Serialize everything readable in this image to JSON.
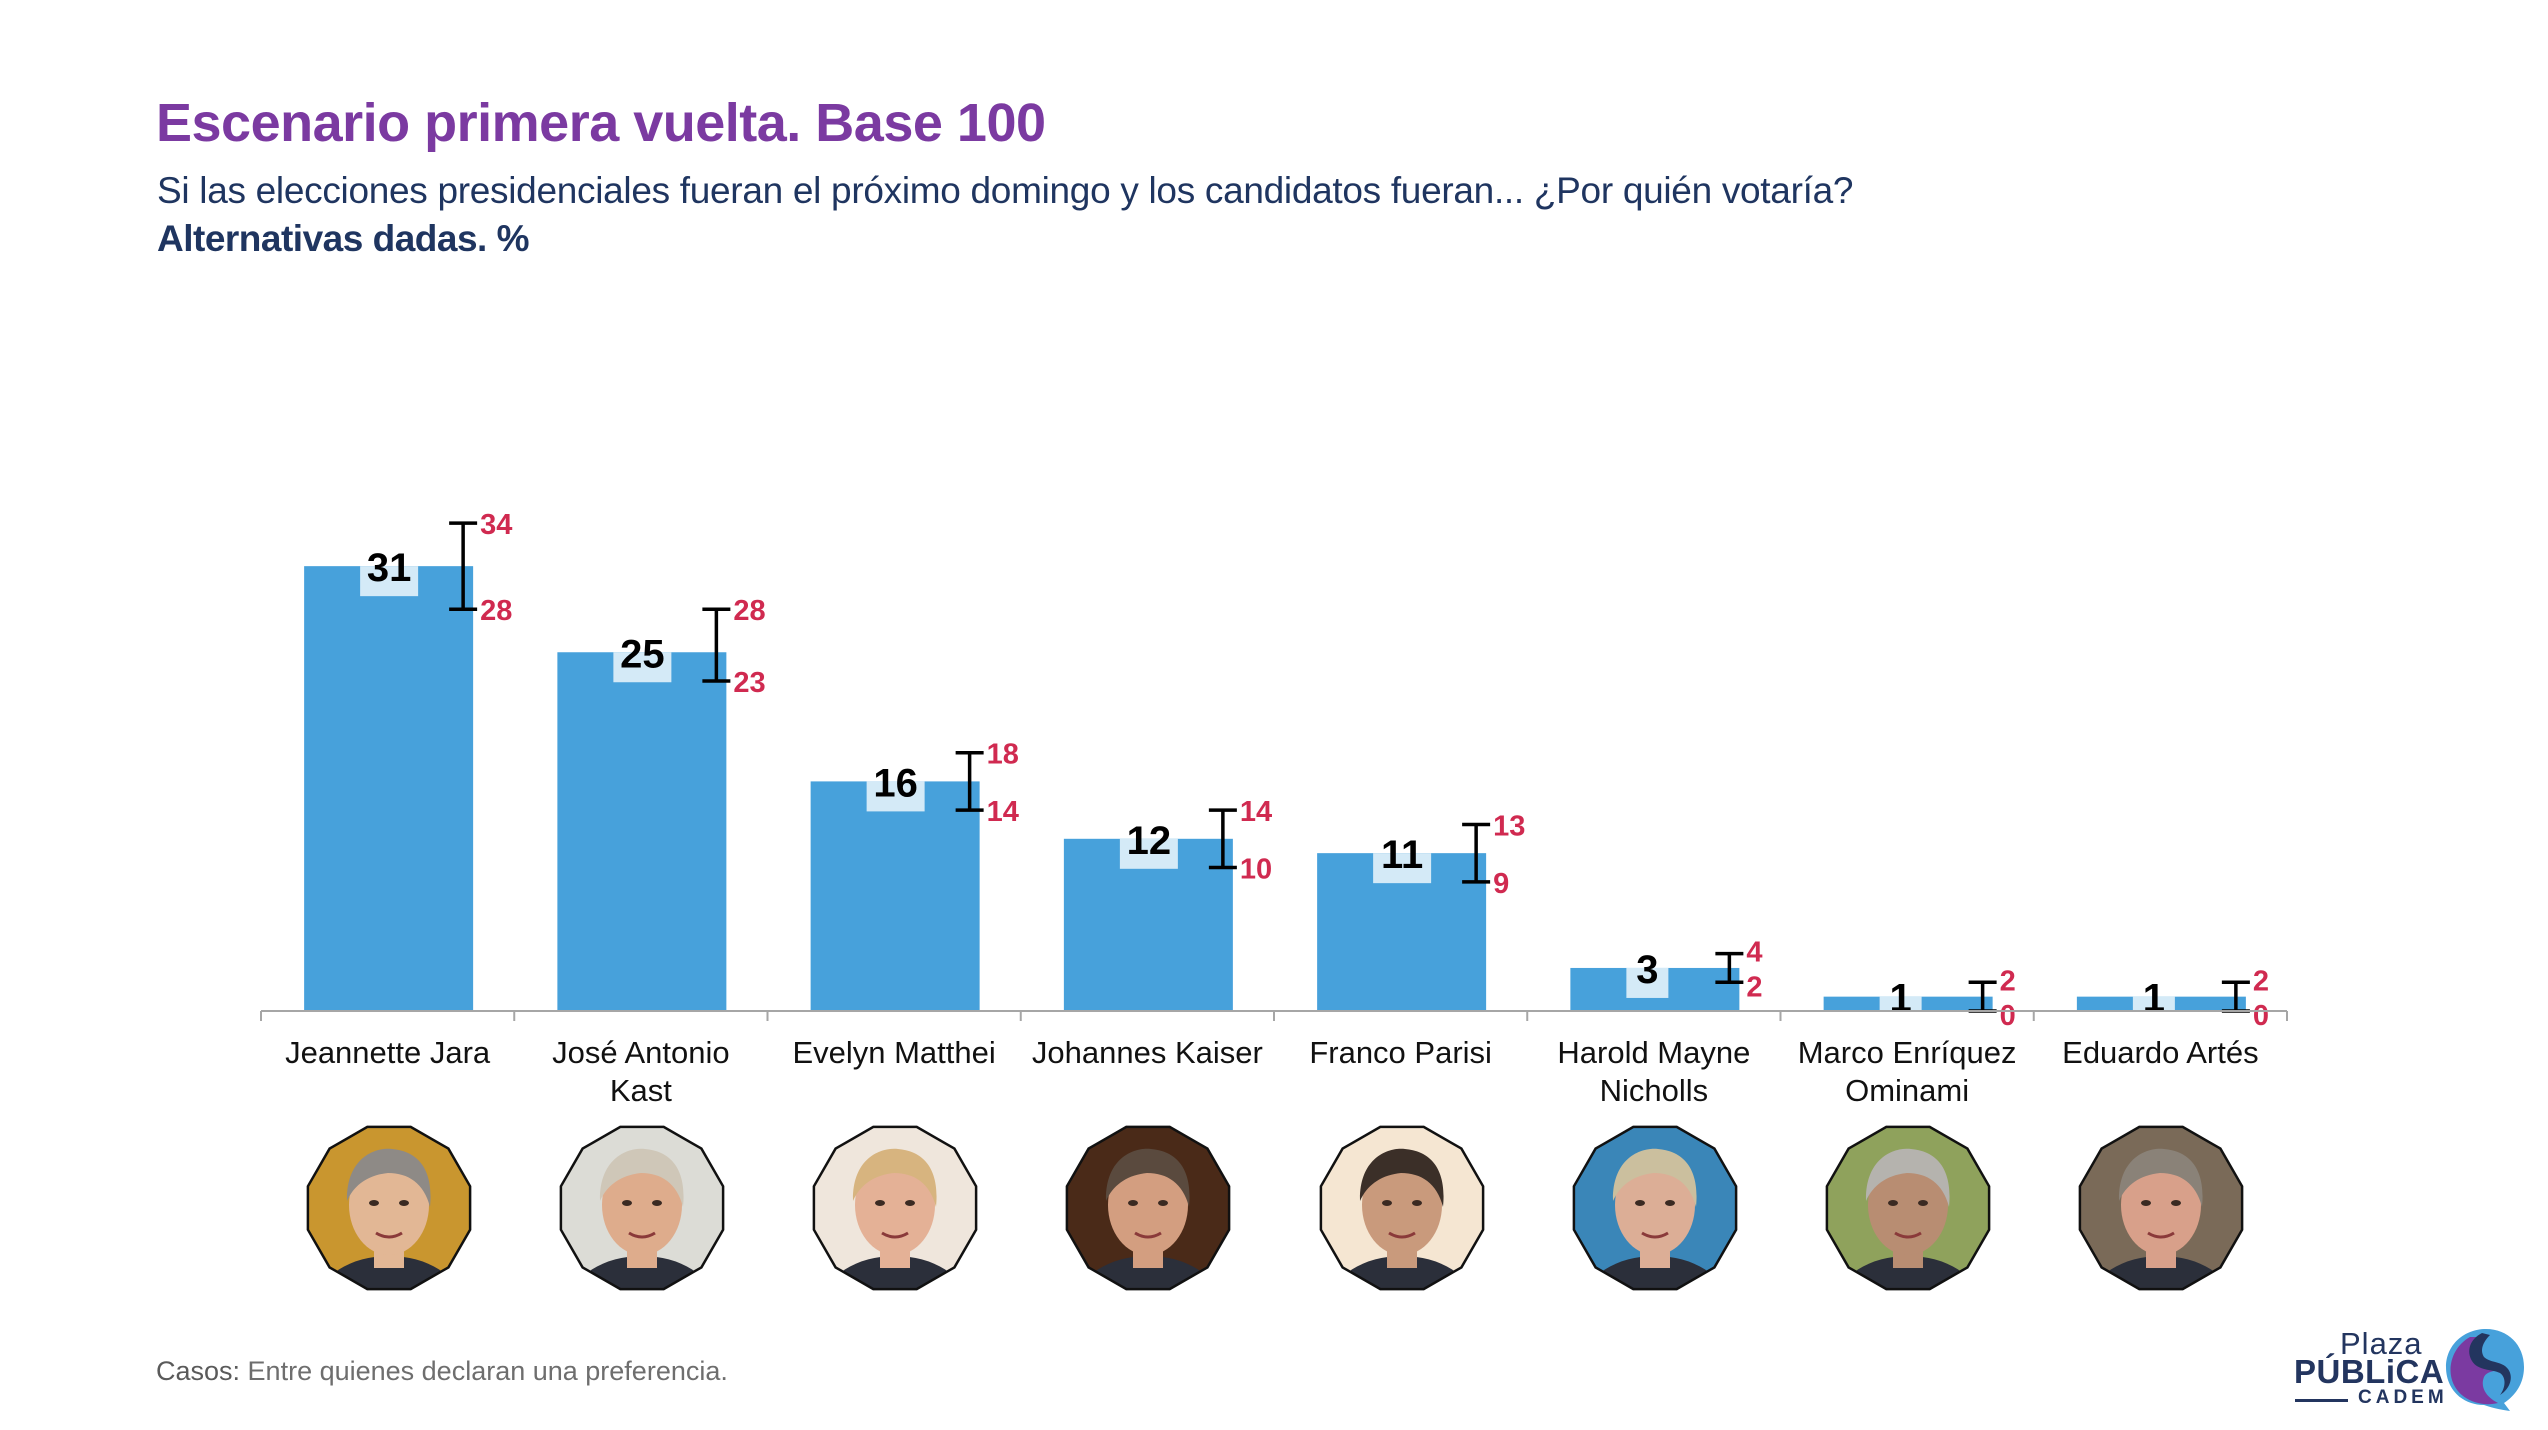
{
  "header": {
    "title": "Escenario primera vuelta. Base 100",
    "subtitle": "Si las elecciones presidenciales fueran el próximo domingo y los candidatos fueran... ¿Por quién votaría?",
    "subtitle_bold": "Alternativas dadas. %"
  },
  "chart_data": {
    "type": "bar",
    "title": "Escenario primera vuelta. Base 100",
    "xlabel": "",
    "ylabel": "%",
    "ylim": [
      0,
      35
    ],
    "grid": false,
    "legend": "none",
    "categories": [
      [
        "Jeannette Jara"
      ],
      [
        "José Antonio",
        "Kast"
      ],
      [
        "Evelyn Matthei"
      ],
      [
        "Johannes Kaiser"
      ],
      [
        "Franco Parisi"
      ],
      [
        "Harold Mayne",
        "Nicholls"
      ],
      [
        "Marco Enríquez",
        "Ominami"
      ],
      [
        "Eduardo Artés"
      ]
    ],
    "values": [
      31,
      25,
      16,
      12,
      11,
      3,
      1,
      1
    ],
    "error_upper": [
      34,
      28,
      18,
      14,
      13,
      4,
      2,
      2
    ],
    "error_lower": [
      28,
      23,
      14,
      10,
      9,
      2,
      0,
      0
    ],
    "colors": {
      "bar": "#47a1db",
      "label_box": "#d4eaf7",
      "value_text": "#000000",
      "error_text": "#d02a50",
      "error_bar": "#000000",
      "axis": "#a6a6a6"
    }
  },
  "candidates": [
    {
      "name": "Jeannette Jara",
      "photo": "jara-photo",
      "bg": "#c9962f",
      "skin": "#e2b795",
      "hair": "#8e8a86"
    },
    {
      "name": "José Antonio Kast",
      "photo": "kast-photo",
      "bg": "#dcdcd6",
      "skin": "#deac8c",
      "hair": "#cfc7b8"
    },
    {
      "name": "Evelyn Matthei",
      "photo": "matthei-photo",
      "bg": "#efe6dc",
      "skin": "#e4b196",
      "hair": "#d7b47f"
    },
    {
      "name": "Johannes Kaiser",
      "photo": "kaiser-photo",
      "bg": "#4a2a18",
      "skin": "#d39e80",
      "hair": "#5a4a3e"
    },
    {
      "name": "Franco Parisi",
      "photo": "parisi-photo",
      "bg": "#f5e6d2",
      "skin": "#c99a7c",
      "hair": "#3b2f28"
    },
    {
      "name": "Harold Mayne Nicholls",
      "photo": "mayne-nicholls-photo",
      "bg": "#3a86b8",
      "skin": "#dcae96",
      "hair": "#cbbf9e"
    },
    {
      "name": "Marco Enríquez Ominami",
      "photo": "enriquez-ominami-photo",
      "bg": "#8fa25c",
      "skin": "#b88d72",
      "hair": "#b5b3ae"
    },
    {
      "name": "Eduardo Artés",
      "photo": "artes-photo",
      "bg": "#7a6a58",
      "skin": "#d8a08a",
      "hair": "#8a8278"
    }
  ],
  "footer": {
    "label": "Casos:",
    "text": " Entre quienes declaran una preferencia."
  },
  "logo": {
    "line1": "Plaza",
    "line2": "PÚBLiCA",
    "line3": "CADEM",
    "colors": {
      "navy": "#23355f",
      "blue": "#47a1db",
      "purple": "#7b3aa1"
    }
  }
}
